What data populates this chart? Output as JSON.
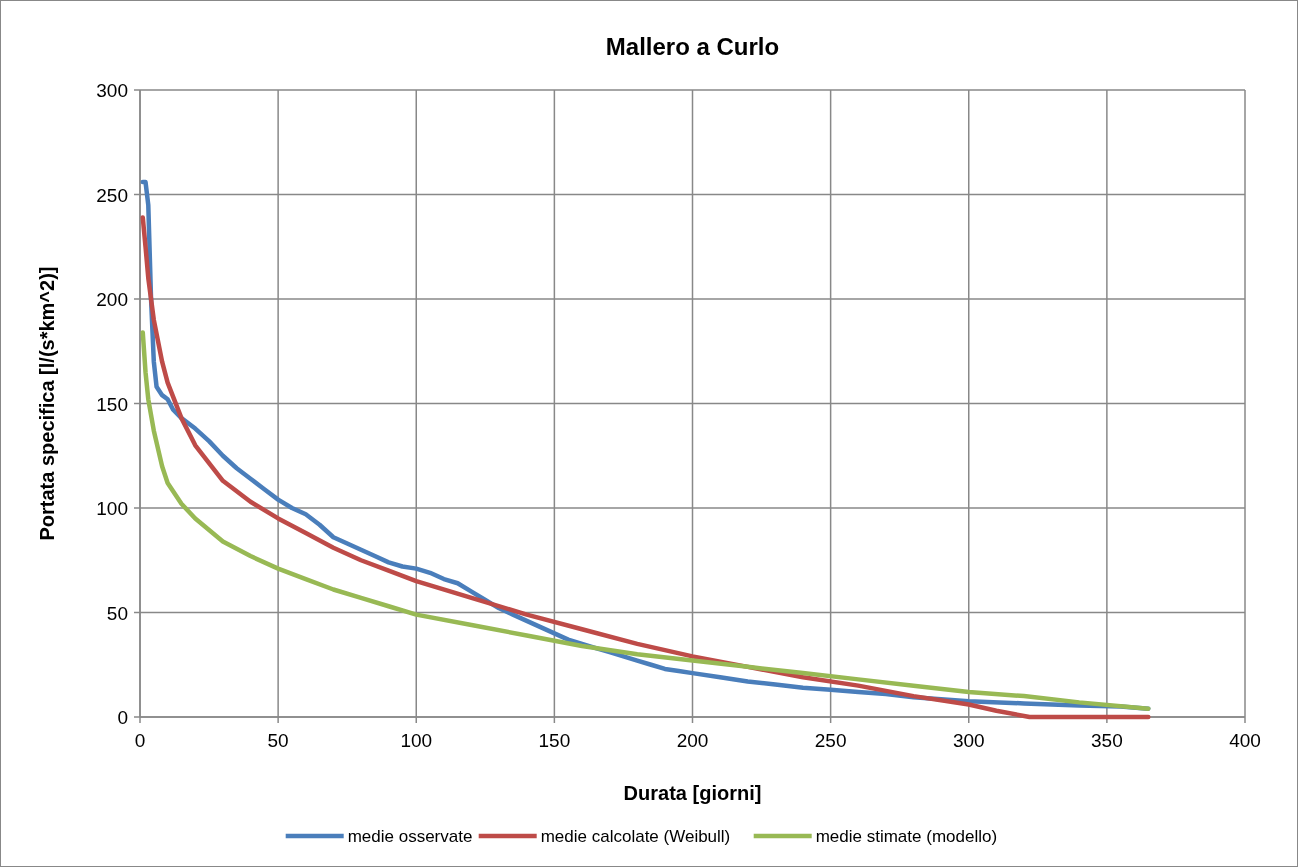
{
  "chart_data": {
    "type": "line",
    "title": "Mallero a Curlo",
    "xlabel": "Durata [giorni]",
    "ylabel": "Portata specifica [l/(s*km^2)]",
    "xlim": [
      0,
      400
    ],
    "xticks": [
      0,
      50,
      100,
      150,
      200,
      250,
      300,
      350,
      400
    ],
    "ylim": [
      0,
      300
    ],
    "yticks": [
      0,
      50,
      100,
      150,
      200,
      250,
      300
    ],
    "grid": true,
    "legend": "bottom",
    "marker": "none",
    "line_style": "solid",
    "series": [
      {
        "name": "medie osservate",
        "color": "#4a7ebb",
        "x": [
          1,
          2,
          3,
          4,
          5,
          6,
          8,
          10,
          12,
          15,
          20,
          25,
          30,
          35,
          40,
          45,
          50,
          55,
          60,
          65,
          70,
          75,
          80,
          85,
          90,
          95,
          100,
          105,
          110,
          115,
          120,
          125,
          130,
          135,
          140,
          145,
          150,
          155,
          160,
          165,
          170,
          175,
          180,
          185,
          190,
          195,
          200,
          210,
          220,
          230,
          240,
          250,
          260,
          270,
          280,
          290,
          300,
          320,
          340,
          355,
          365
        ],
        "values": [
          256,
          256,
          245,
          200,
          170,
          158,
          154,
          152,
          147,
          143,
          138,
          132,
          125,
          119,
          114,
          109,
          104,
          100,
          97,
          92,
          86,
          83,
          80,
          77,
          74,
          72,
          71,
          69,
          66,
          64,
          60,
          56,
          52,
          49,
          46,
          43,
          40,
          37,
          35,
          33,
          31,
          29,
          27,
          25,
          23,
          22,
          21,
          19,
          17,
          15.5,
          14,
          13,
          12,
          11,
          9.5,
          8.5,
          7.5,
          6.5,
          5.5,
          5,
          4
        ]
      },
      {
        "name": "medie calcolate (Weibull)",
        "color": "#be4b48",
        "x": [
          1,
          2,
          3,
          5,
          8,
          10,
          15,
          20,
          30,
          40,
          50,
          60,
          70,
          80,
          90,
          100,
          120,
          140,
          160,
          180,
          200,
          220,
          240,
          260,
          280,
          300,
          310,
          322,
          340,
          365
        ],
        "values": [
          239,
          225,
          210,
          190,
          170,
          160,
          143,
          130,
          113,
          103,
          95,
          88,
          81,
          75,
          70,
          65,
          57,
          49,
          42,
          35,
          29,
          24,
          19,
          15,
          10,
          6,
          3,
          0,
          0,
          0
        ]
      },
      {
        "name": "medie stimate (modello)",
        "color": "#98b954",
        "x": [
          1,
          2,
          3,
          5,
          8,
          10,
          15,
          20,
          30,
          40,
          50,
          60,
          70,
          80,
          90,
          100,
          120,
          140,
          160,
          180,
          200,
          220,
          240,
          260,
          280,
          300,
          320,
          340,
          365
        ],
        "values": [
          184,
          165,
          152,
          137,
          120,
          112,
          102,
          95,
          84,
          77,
          71,
          66,
          61,
          57,
          53,
          49,
          44,
          39,
          34,
          30,
          27,
          24,
          21,
          18,
          15,
          12,
          10,
          7,
          4
        ]
      }
    ]
  }
}
